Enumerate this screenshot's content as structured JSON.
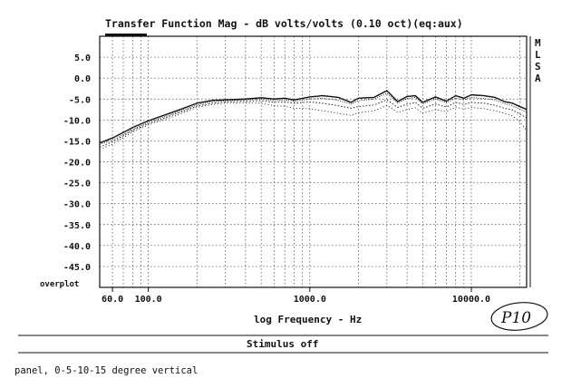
{
  "chart_data": {
    "type": "line",
    "title": "Transfer Function Mag - dB volts/volts (0.10 oct)(eq:aux)",
    "xlabel": "log Frequency - Hz",
    "ylabel": "",
    "xscale": "log",
    "xlim": [
      50,
      22000
    ],
    "ylim": [
      -50,
      10
    ],
    "yticks": [
      "5.0",
      "0.0",
      "-5.0",
      "-10.0",
      "-15.0",
      "-20.0",
      "-25.0",
      "-30.0",
      "-35.0",
      "-40.0",
      "-45.0"
    ],
    "yticks_values": [
      5,
      0,
      -5,
      -10,
      -15,
      -20,
      -25,
      -30,
      -35,
      -40,
      -45
    ],
    "xticks": [
      "60.0",
      "100.0",
      "1000.0",
      "10000.0"
    ],
    "xticks_values": [
      60,
      100,
      1000,
      10000
    ],
    "grid": true,
    "legend_placement": "right",
    "legend_letters": [
      "M",
      "L",
      "S",
      "A"
    ],
    "overplot_label": "overplot",
    "series": [
      {
        "style": "solid",
        "x": [
          50,
          60,
          70,
          80,
          100,
          150,
          200,
          250,
          300,
          400,
          500,
          600,
          700,
          800,
          1000,
          1200,
          1500,
          1800,
          2000,
          2500,
          3000,
          3500,
          4000,
          4500,
          5000,
          6000,
          7000,
          8000,
          9000,
          10000,
          12000,
          14000,
          16000,
          18000,
          20000,
          22000
        ],
        "y": [
          -15.5,
          -14.3,
          -13.0,
          -11.8,
          -10.2,
          -7.8,
          -6.0,
          -5.3,
          -5.2,
          -5.0,
          -4.7,
          -5.0,
          -4.8,
          -5.2,
          -4.5,
          -4.2,
          -4.6,
          -5.8,
          -4.8,
          -4.6,
          -3.0,
          -5.6,
          -4.4,
          -4.2,
          -5.8,
          -4.5,
          -5.5,
          -4.2,
          -4.8,
          -4.0,
          -4.2,
          -4.6,
          -5.6,
          -6.0,
          -6.8,
          -7.5
        ]
      },
      {
        "style": "dotted",
        "x": [
          50,
          60,
          70,
          80,
          100,
          150,
          200,
          250,
          300,
          400,
          500,
          600,
          700,
          800,
          1000,
          1200,
          1500,
          1800,
          2000,
          2500,
          3000,
          3500,
          4000,
          4500,
          5000,
          6000,
          7000,
          8000,
          9000,
          10000,
          12000,
          14000,
          16000,
          18000,
          20000,
          22000
        ],
        "y": [
          -15.8,
          -14.8,
          -13.5,
          -12.2,
          -10.6,
          -8.2,
          -6.4,
          -5.6,
          -5.4,
          -5.2,
          -5.0,
          -5.4,
          -5.2,
          -5.5,
          -5.0,
          -4.8,
          -5.3,
          -6.2,
          -5.4,
          -5.0,
          -3.6,
          -6.0,
          -4.9,
          -4.6,
          -6.2,
          -5.0,
          -5.9,
          -4.8,
          -5.2,
          -4.6,
          -4.9,
          -5.2,
          -6.1,
          -6.6,
          -7.4,
          -8.2
        ]
      },
      {
        "style": "dotted",
        "x": [
          50,
          60,
          70,
          80,
          100,
          150,
          200,
          250,
          300,
          400,
          500,
          600,
          700,
          800,
          1000,
          1200,
          1500,
          1800,
          2000,
          2500,
          3000,
          3500,
          4000,
          4500,
          5000,
          6000,
          7000,
          8000,
          9000,
          10000,
          12000,
          14000,
          16000,
          18000,
          20000,
          22000
        ],
        "y": [
          -16.5,
          -15.2,
          -13.8,
          -12.5,
          -10.9,
          -8.5,
          -6.7,
          -6.0,
          -5.7,
          -5.5,
          -5.4,
          -5.8,
          -5.7,
          -6.0,
          -5.7,
          -6.0,
          -6.6,
          -7.2,
          -6.8,
          -6.4,
          -5.2,
          -7.0,
          -6.2,
          -5.8,
          -7.2,
          -6.2,
          -6.9,
          -5.8,
          -6.3,
          -5.8,
          -6.0,
          -6.5,
          -7.2,
          -7.6,
          -8.6,
          -9.5
        ]
      },
      {
        "style": "dotted",
        "x": [
          50,
          60,
          70,
          80,
          100,
          150,
          200,
          250,
          300,
          400,
          500,
          600,
          700,
          800,
          1000,
          1200,
          1500,
          1800,
          2000,
          2500,
          3000,
          3500,
          4000,
          4500,
          5000,
          6000,
          7000,
          8000,
          9000,
          10000,
          12000,
          14000,
          16000,
          18000,
          20000,
          22000
        ],
        "y": [
          -17.0,
          -15.8,
          -14.2,
          -12.9,
          -11.2,
          -8.9,
          -7.0,
          -6.3,
          -6.0,
          -5.9,
          -6.0,
          -6.6,
          -6.7,
          -7.2,
          -7.3,
          -7.8,
          -8.4,
          -8.9,
          -8.3,
          -7.8,
          -6.5,
          -8.2,
          -7.5,
          -7.1,
          -8.4,
          -7.5,
          -8.0,
          -6.9,
          -7.4,
          -7.0,
          -7.3,
          -7.8,
          -8.4,
          -9.0,
          -10.5,
          -12.5
        ]
      }
    ]
  },
  "annotation": {
    "handwritten": "P10"
  },
  "footer": {
    "status": "Stimulus off",
    "caption": "panel, 0-5-10-15 degree vertical"
  }
}
